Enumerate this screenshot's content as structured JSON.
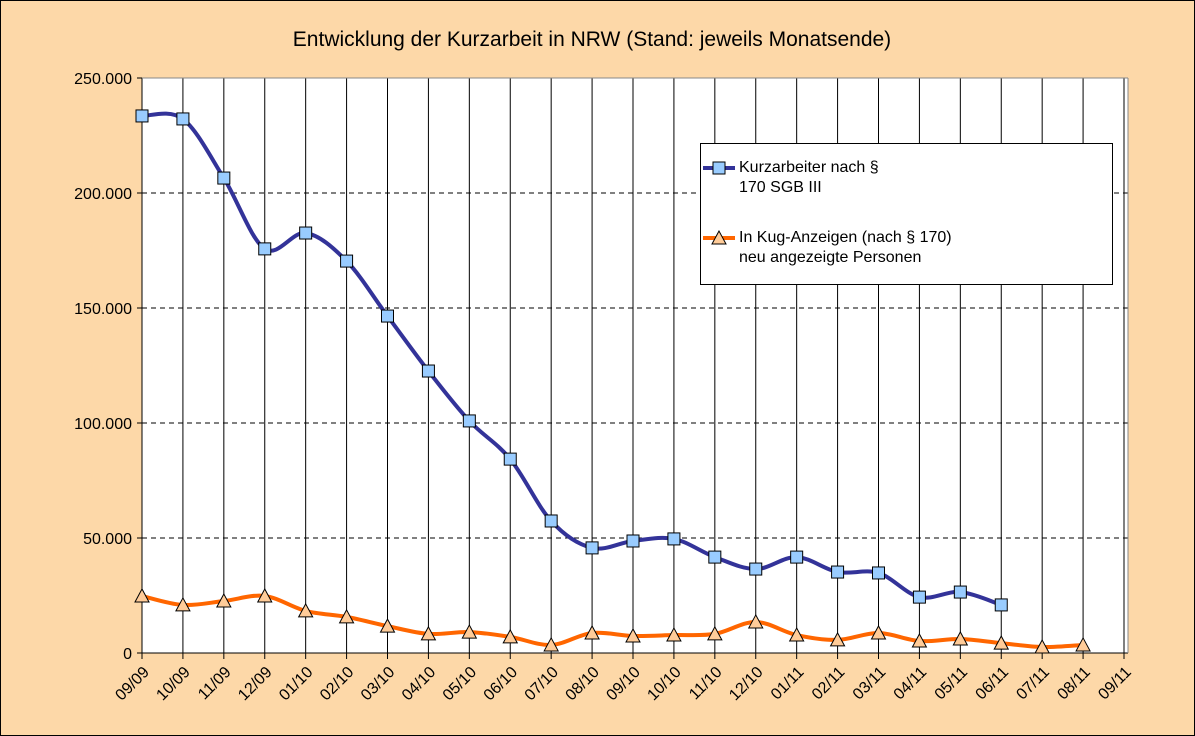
{
  "chart_data": {
    "type": "line",
    "title": "Entwicklung der Kurzarbeit in NRW (Stand: jeweils Monatsende)",
    "categories": [
      "09/09",
      "10/09",
      "11/09",
      "12/09",
      "01/10",
      "02/10",
      "03/10",
      "04/10",
      "05/10",
      "06/10",
      "07/10",
      "08/10",
      "09/10",
      "10/10",
      "11/10",
      "12/10",
      "01/11",
      "02/11",
      "03/11",
      "04/11",
      "05/11",
      "06/11",
      "07/11",
      "08/11",
      "09/11"
    ],
    "series": [
      {
        "name": "Kurzarbeiter nach § 170 SGB III",
        "color": "#333399",
        "marker": "square",
        "marker_color": "#99ccff",
        "values": [
          233500,
          232200,
          206500,
          175700,
          182600,
          170400,
          146500,
          122600,
          100900,
          84300,
          57400,
          45700,
          48700,
          49600,
          41700,
          36500,
          41700,
          35200,
          34800,
          24300,
          26500,
          20900,
          null,
          null,
          null
        ]
      },
      {
        "name": "In Kug-Anzeigen (nach § 170) neu angezeigte Personen",
        "color": "#ff6600",
        "marker": "triangle",
        "marker_color": "#ffcc99",
        "values": [
          24800,
          20900,
          22600,
          24800,
          18300,
          15700,
          11700,
          8300,
          9100,
          7000,
          3500,
          8700,
          7400,
          7800,
          8300,
          13500,
          7800,
          5700,
          8700,
          5200,
          6100,
          4300,
          2600,
          3500,
          null
        ]
      }
    ],
    "ylim": [
      0,
      250000
    ],
    "yticks": [
      0,
      {
        "value": 50000,
        "label": "50.000"
      },
      {
        "value": 100000,
        "label": "100.000"
      },
      {
        "value": 150000,
        "label": "150.000"
      },
      {
        "value": 200000,
        "label": "200.000"
      },
      {
        "value": 250000,
        "label": "250.000"
      }
    ],
    "grid": true,
    "legend": "upper right"
  }
}
